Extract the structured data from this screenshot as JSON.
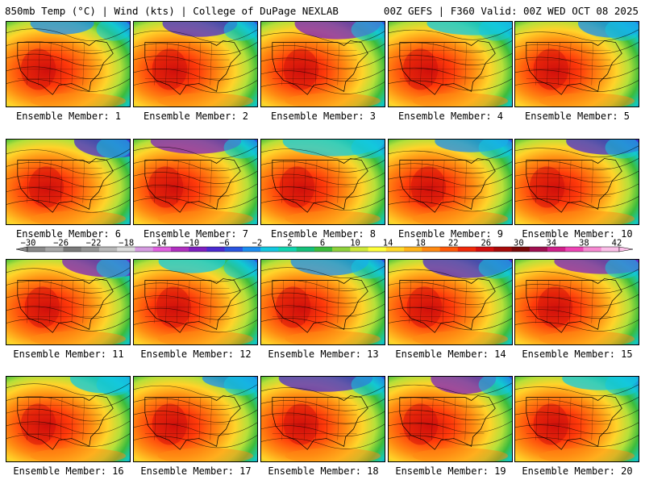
{
  "header": {
    "left": "850mb Temp (°C) | Wind (kts) | College of DuPage NEXLAB",
    "right": "00Z GEFS | F360 Valid: 00Z WED OCT 08 2025"
  },
  "colorbar": {
    "labels": [
      "−30",
      "−26",
      "−22",
      "−18",
      "−14",
      "−10",
      "−6",
      "−2",
      "2",
      "6",
      "10",
      "14",
      "18",
      "22",
      "26",
      "30",
      "34",
      "38",
      "42"
    ],
    "colors": [
      "#8a8a8a",
      "#a8a8a8",
      "#7a7a7a",
      "#969696",
      "#b8b8b8",
      "#dcdcdc",
      "#d59be0",
      "#e060e0",
      "#b030c0",
      "#7e1fc0",
      "#4b2ad0",
      "#2a55e0",
      "#1c8ef0",
      "#14c8e0",
      "#12d5b0",
      "#15c07a",
      "#3cbc3c",
      "#8fd13c",
      "#cfe83a",
      "#ffff3a",
      "#ffd92a",
      "#ffb41a",
      "#ff8a12",
      "#ff5a0a",
      "#f02a0a",
      "#d40f0f",
      "#a80a0a",
      "#7a0a0a",
      "#a01050",
      "#d0208a",
      "#ee45b6",
      "#f78ad2",
      "#fbbfe8"
    ]
  },
  "members": [
    {
      "label": "Ensemble Member: 1"
    },
    {
      "label": "Ensemble Member: 2"
    },
    {
      "label": "Ensemble Member: 3"
    },
    {
      "label": "Ensemble Member: 4"
    },
    {
      "label": "Ensemble Member: 5"
    },
    {
      "label": "Ensemble Member: 6"
    },
    {
      "label": "Ensemble Member: 7"
    },
    {
      "label": "Ensemble Member: 8"
    },
    {
      "label": "Ensemble Member: 9"
    },
    {
      "label": "Ensemble Member: 10"
    },
    {
      "label": "Ensemble Member: 11"
    },
    {
      "label": "Ensemble Member: 12"
    },
    {
      "label": "Ensemble Member: 13"
    },
    {
      "label": "Ensemble Member: 14"
    },
    {
      "label": "Ensemble Member: 15"
    },
    {
      "label": "Ensemble Member: 16"
    },
    {
      "label": "Ensemble Member: 17"
    },
    {
      "label": "Ensemble Member: 18"
    },
    {
      "label": "Ensemble Member: 19"
    },
    {
      "label": "Ensemble Member: 20"
    }
  ]
}
